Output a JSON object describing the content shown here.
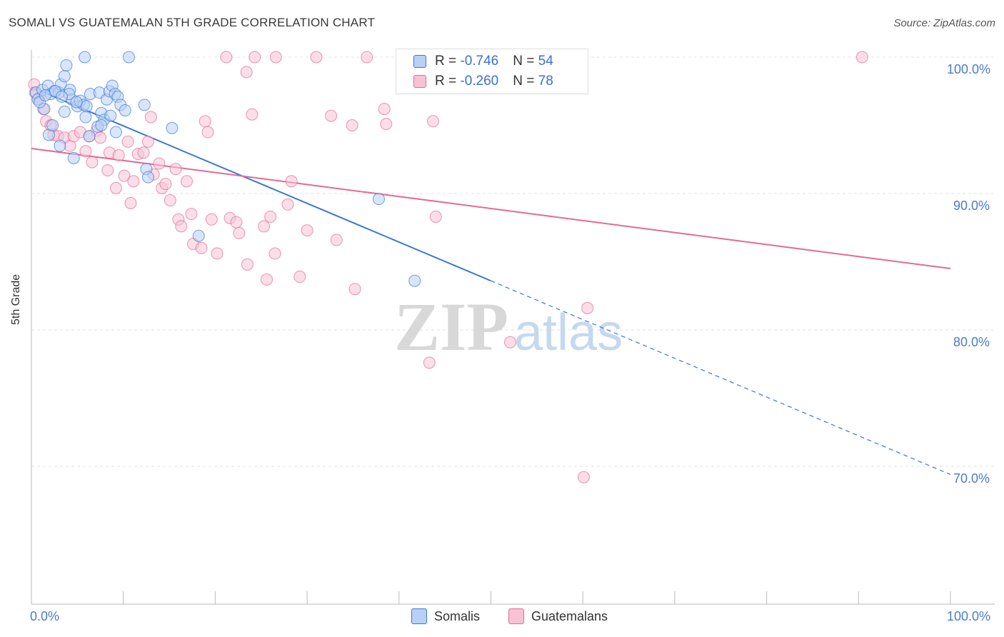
{
  "title": "SOMALI VS GUATEMALAN 5TH GRADE CORRELATION CHART",
  "source": "Source: ZipAtlas.com",
  "watermark": {
    "zip": "ZIP",
    "atlas": "atlas"
  },
  "colors": {
    "blue": "#3a78d4",
    "blue_fill": "#b8d0f5",
    "pink": "#e36a95",
    "pink_fill": "#f7c2d4",
    "axis_label": "#4a7cc9",
    "grid": "#e2e2e2"
  },
  "legend": {
    "rows": [
      {
        "r_label": "R = ",
        "r_value": "-0.746",
        "n_label": "N = ",
        "n_value": "54",
        "series": "blue"
      },
      {
        "r_label": "R = ",
        "r_value": "-0.260",
        "n_label": "N = ",
        "n_value": "78",
        "series": "pink"
      }
    ]
  },
  "bottom_legend": [
    {
      "label": "Somalis",
      "series": "blue"
    },
    {
      "label": "Guatemalans",
      "series": "pink"
    }
  ],
  "chart_data": {
    "type": "scatter",
    "title": "SOMALI VS GUATEMALAN 5TH GRADE CORRELATION CHART",
    "xlabel": "",
    "ylabel": "5th Grade",
    "xlim": [
      0,
      100
    ],
    "ylim": [
      60,
      100.8
    ],
    "x_tick_labels": [
      "0.0%",
      "100.0%"
    ],
    "y_ticks": [
      100,
      90,
      80,
      70
    ],
    "y_tick_labels": [
      "100.0%",
      "90.0%",
      "80.0%",
      "70.0%"
    ],
    "grid": true,
    "legend_position": "top-center",
    "series": [
      {
        "name": "Somalis",
        "color": "#3a78d4",
        "points": [
          [
            0.5,
            97.4
          ],
          [
            0.7,
            96.9
          ],
          [
            1.2,
            97.6
          ],
          [
            1.8,
            97.9
          ],
          [
            2.1,
            97.3
          ],
          [
            2.5,
            97.5
          ],
          [
            3.0,
            97.4
          ],
          [
            3.2,
            98.0
          ],
          [
            3.6,
            98.6
          ],
          [
            3.8,
            99.4
          ],
          [
            4.2,
            97.6
          ],
          [
            4.4,
            96.9
          ],
          [
            5.0,
            96.4
          ],
          [
            5.3,
            96.8
          ],
          [
            5.7,
            96.5
          ],
          [
            6.4,
            97.3
          ],
          [
            7.4,
            97.4
          ],
          [
            7.6,
            95.9
          ],
          [
            7.9,
            95.4
          ],
          [
            8.2,
            96.9
          ],
          [
            8.5,
            97.5
          ],
          [
            8.6,
            95.7
          ],
          [
            8.8,
            97.9
          ],
          [
            9.1,
            97.3
          ],
          [
            9.4,
            97.1
          ],
          [
            9.2,
            94.5
          ],
          [
            9.7,
            96.5
          ],
          [
            10.2,
            96.1
          ],
          [
            5.8,
            100.0
          ],
          [
            10.6,
            100.0
          ],
          [
            1.4,
            96.2
          ],
          [
            1.9,
            94.3
          ],
          [
            2.3,
            95.0
          ],
          [
            3.1,
            93.5
          ],
          [
            3.6,
            96.0
          ],
          [
            4.6,
            92.6
          ],
          [
            5.9,
            95.6
          ],
          [
            6.3,
            94.2
          ],
          [
            7.2,
            94.9
          ],
          [
            7.6,
            95.0
          ],
          [
            12.3,
            96.5
          ],
          [
            12.5,
            91.8
          ],
          [
            12.7,
            91.2
          ],
          [
            15.3,
            94.8
          ],
          [
            18.2,
            86.9
          ],
          [
            37.8,
            89.6
          ],
          [
            41.7,
            83.6
          ],
          [
            0.9,
            96.7
          ],
          [
            2.6,
            97.5
          ],
          [
            4.1,
            97.3
          ],
          [
            6.0,
            96.4
          ],
          [
            1.5,
            97.2
          ],
          [
            3.3,
            97.1
          ],
          [
            4.9,
            96.7
          ]
        ]
      },
      {
        "name": "Guatemalans",
        "color": "#e36a95",
        "points": [
          [
            0.4,
            97.4
          ],
          [
            0.8,
            97.0
          ],
          [
            1.3,
            96.2
          ],
          [
            1.6,
            95.3
          ],
          [
            2.1,
            95.0
          ],
          [
            2.4,
            94.3
          ],
          [
            2.9,
            94.2
          ],
          [
            3.6,
            94.1
          ],
          [
            4.2,
            93.5
          ],
          [
            4.6,
            94.2
          ],
          [
            5.3,
            94.5
          ],
          [
            5.9,
            93.1
          ],
          [
            6.3,
            94.2
          ],
          [
            6.6,
            92.3
          ],
          [
            7.1,
            94.6
          ],
          [
            7.5,
            94.1
          ],
          [
            8.3,
            91.7
          ],
          [
            8.5,
            93.0
          ],
          [
            9.2,
            90.4
          ],
          [
            9.5,
            92.8
          ],
          [
            10.1,
            91.3
          ],
          [
            10.5,
            93.8
          ],
          [
            10.8,
            89.3
          ],
          [
            11.1,
            90.9
          ],
          [
            11.6,
            92.9
          ],
          [
            12.2,
            93.0
          ],
          [
            12.7,
            93.8
          ],
          [
            13.0,
            95.6
          ],
          [
            13.3,
            91.4
          ],
          [
            13.9,
            92.2
          ],
          [
            14.2,
            90.4
          ],
          [
            14.6,
            90.7
          ],
          [
            15.1,
            89.5
          ],
          [
            15.7,
            91.8
          ],
          [
            16.0,
            88.1
          ],
          [
            16.3,
            87.6
          ],
          [
            16.9,
            90.9
          ],
          [
            17.4,
            88.5
          ],
          [
            17.6,
            86.3
          ],
          [
            18.5,
            86.0
          ],
          [
            18.9,
            95.3
          ],
          [
            19.2,
            94.5
          ],
          [
            19.6,
            88.1
          ],
          [
            20.2,
            85.6
          ],
          [
            21.2,
            100.0
          ],
          [
            21.6,
            88.2
          ],
          [
            22.3,
            87.9
          ],
          [
            22.6,
            87.1
          ],
          [
            23.4,
            98.9
          ],
          [
            23.5,
            84.8
          ],
          [
            24.0,
            95.8
          ],
          [
            24.3,
            100.0
          ],
          [
            25.3,
            87.6
          ],
          [
            25.6,
            83.7
          ],
          [
            26.0,
            88.3
          ],
          [
            26.6,
            100.0
          ],
          [
            26.5,
            85.6
          ],
          [
            27.9,
            89.2
          ],
          [
            28.3,
            90.9
          ],
          [
            29.2,
            83.9
          ],
          [
            30.0,
            87.3
          ],
          [
            31.0,
            100.0
          ],
          [
            32.6,
            95.7
          ],
          [
            33.2,
            86.6
          ],
          [
            34.9,
            95.0
          ],
          [
            35.2,
            83.0
          ],
          [
            36.5,
            100.0
          ],
          [
            38.4,
            96.2
          ],
          [
            38.6,
            95.1
          ],
          [
            43.7,
            95.3
          ],
          [
            43.3,
            77.6
          ],
          [
            44.0,
            88.3
          ],
          [
            52.1,
            79.1
          ],
          [
            56.8,
            100.0
          ],
          [
            60.5,
            81.6
          ],
          [
            60.1,
            69.2
          ],
          [
            90.4,
            100.0
          ],
          [
            0.3,
            98.0
          ]
        ]
      }
    ],
    "trendlines": [
      {
        "series": "Somalis",
        "x": [
          0,
          50
        ],
        "y": [
          97.8,
          83.6
        ],
        "extended_dashed_to": [
          100,
          69.4
        ]
      },
      {
        "series": "Guatemalans",
        "x": [
          0,
          100
        ],
        "y": [
          93.3,
          84.5
        ]
      }
    ]
  }
}
